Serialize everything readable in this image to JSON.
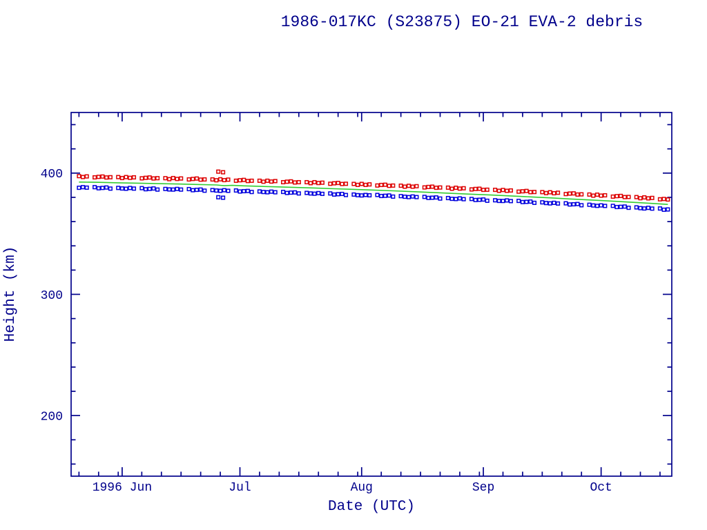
{
  "page": {
    "title": "1986-017KC (S23875) EO-21 EVA-2 debris"
  },
  "chart_data": {
    "type": "scatter",
    "title": "1986-017KC (S23875) EO-21 EVA-2 debris",
    "xlabel": "Date (UTC)",
    "ylabel": "Height (km)",
    "background": "#FFFFFF",
    "axis_color": "#00008B",
    "grid": false,
    "legend": "none",
    "x_axis": {
      "unit": "days, 0 = 1996 May 19",
      "range": [
        0,
        153
      ],
      "major_ticks": [
        {
          "day": 13,
          "label": "1996 Jun"
        },
        {
          "day": 43,
          "label": "Jul"
        },
        {
          "day": 74,
          "label": "Aug"
        },
        {
          "day": 105,
          "label": "Sep"
        },
        {
          "day": 135,
          "label": "Oct"
        }
      ],
      "minor_tick_days": [
        2,
        7,
        12,
        18,
        23,
        28,
        33,
        38,
        48,
        53,
        58,
        63,
        68,
        73,
        79,
        84,
        89,
        94,
        99,
        104,
        110,
        115,
        120,
        125,
        130,
        140,
        145,
        150
      ]
    },
    "y_axis": {
      "range": [
        150,
        450
      ],
      "major_ticks": [
        200,
        300,
        400
      ],
      "minor_ticks": [
        160,
        180,
        220,
        240,
        260,
        280,
        320,
        340,
        360,
        380,
        420,
        440
      ]
    },
    "series": [
      {
        "name": "upper-red-squares",
        "marker": "open-square",
        "color": "#DD0000",
        "points": [
          [
            2,
            397.5
          ],
          [
            3,
            396.8
          ],
          [
            4,
            397.3
          ],
          [
            6,
            396.5
          ],
          [
            7,
            396.9
          ],
          [
            8,
            397.2
          ],
          [
            9,
            396.4
          ],
          [
            10,
            396.6
          ],
          [
            12,
            396.7
          ],
          [
            13,
            395.9
          ],
          [
            14,
            396.7
          ],
          [
            15,
            396.1
          ],
          [
            16,
            396.5
          ],
          [
            18,
            395.7
          ],
          [
            19,
            396.1
          ],
          [
            20,
            396.4
          ],
          [
            21,
            395.6
          ],
          [
            22,
            395.8
          ],
          [
            24,
            395.8
          ],
          [
            25,
            395.0
          ],
          [
            26,
            395.9
          ],
          [
            27,
            395.2
          ],
          [
            28,
            395.6
          ],
          [
            30,
            394.8
          ],
          [
            31,
            395.2
          ],
          [
            32,
            395.5
          ],
          [
            33,
            394.6
          ],
          [
            34,
            394.8
          ],
          [
            36,
            394.8
          ],
          [
            37,
            394.1
          ],
          [
            37.5,
            401.2
          ],
          [
            38,
            394.9
          ],
          [
            38.7,
            400.7
          ],
          [
            39,
            394.2
          ],
          [
            40,
            394.6
          ],
          [
            42,
            393.7
          ],
          [
            43,
            394.1
          ],
          [
            44,
            394.4
          ],
          [
            45,
            393.5
          ],
          [
            46,
            393.7
          ],
          [
            48,
            393.7
          ],
          [
            49,
            392.9
          ],
          [
            50,
            393.7
          ],
          [
            51,
            393.0
          ],
          [
            52,
            393.4
          ],
          [
            54,
            392.5
          ],
          [
            55,
            392.9
          ],
          [
            56,
            393.2
          ],
          [
            57,
            392.3
          ],
          [
            58,
            392.5
          ],
          [
            60,
            392.5
          ],
          [
            61,
            391.7
          ],
          [
            62,
            392.5
          ],
          [
            63,
            391.8
          ],
          [
            64,
            392.1
          ],
          [
            66,
            391.2
          ],
          [
            67,
            391.6
          ],
          [
            68,
            391.9
          ],
          [
            69,
            391.0
          ],
          [
            70,
            391.2
          ],
          [
            72,
            391.1
          ],
          [
            73,
            390.3
          ],
          [
            74,
            391.1
          ],
          [
            75,
            390.3
          ],
          [
            76,
            390.7
          ],
          [
            78,
            389.8
          ],
          [
            79,
            390.2
          ],
          [
            80,
            390.4
          ],
          [
            81,
            389.5
          ],
          [
            82,
            389.7
          ],
          [
            84,
            389.6
          ],
          [
            85,
            388.8
          ],
          [
            86,
            389.5
          ],
          [
            87,
            388.8
          ],
          [
            88,
            389.2
          ],
          [
            90,
            388.2
          ],
          [
            91,
            388.6
          ],
          [
            92,
            388.8
          ],
          [
            93,
            387.9
          ],
          [
            94,
            388.1
          ],
          [
            96,
            388.0
          ],
          [
            97,
            387.1
          ],
          [
            98,
            387.9
          ],
          [
            99,
            387.2
          ],
          [
            100,
            387.5
          ],
          [
            102,
            386.5
          ],
          [
            103,
            386.9
          ],
          [
            104,
            387.1
          ],
          [
            105,
            386.2
          ],
          [
            106,
            386.3
          ],
          [
            108,
            386.2
          ],
          [
            109,
            385.4
          ],
          [
            110,
            386.1
          ],
          [
            111,
            385.4
          ],
          [
            112,
            385.7
          ],
          [
            114,
            384.7
          ],
          [
            115,
            385.0
          ],
          [
            116,
            385.3
          ],
          [
            117,
            384.3
          ],
          [
            118,
            384.4
          ],
          [
            120,
            384.3
          ],
          [
            121,
            383.5
          ],
          [
            122,
            384.2
          ],
          [
            123,
            383.4
          ],
          [
            124,
            383.8
          ],
          [
            126,
            382.7
          ],
          [
            127,
            383.1
          ],
          [
            128,
            383.3
          ],
          [
            129,
            382.3
          ],
          [
            130,
            382.5
          ],
          [
            132,
            382.3
          ],
          [
            133,
            381.4
          ],
          [
            134,
            382.2
          ],
          [
            135,
            381.4
          ],
          [
            136,
            381.7
          ],
          [
            138,
            380.6
          ],
          [
            139,
            381.0
          ],
          [
            140,
            381.2
          ],
          [
            141,
            380.2
          ],
          [
            142,
            380.3
          ],
          [
            144,
            380.2
          ],
          [
            145,
            379.3
          ],
          [
            146,
            380.0
          ],
          [
            147,
            379.2
          ],
          [
            148,
            379.5
          ],
          [
            150,
            378.4
          ],
          [
            151,
            378.7
          ],
          [
            152,
            378.2
          ]
        ]
      },
      {
        "name": "lower-blue-squares",
        "marker": "open-square",
        "color": "#0000DD",
        "points": [
          [
            2,
            387.9
          ],
          [
            3,
            388.4
          ],
          [
            4,
            388.0
          ],
          [
            6,
            388.4
          ],
          [
            7,
            387.5
          ],
          [
            8,
            387.8
          ],
          [
            9,
            388.1
          ],
          [
            10,
            387.2
          ],
          [
            12,
            387.8
          ],
          [
            13,
            387.3
          ],
          [
            14,
            387.1
          ],
          [
            15,
            387.7
          ],
          [
            16,
            387.2
          ],
          [
            18,
            387.6
          ],
          [
            19,
            386.7
          ],
          [
            20,
            387.0
          ],
          [
            21,
            387.3
          ],
          [
            22,
            386.4
          ],
          [
            24,
            386.9
          ],
          [
            25,
            386.5
          ],
          [
            26,
            386.4
          ],
          [
            27,
            386.9
          ],
          [
            28,
            386.4
          ],
          [
            30,
            386.8
          ],
          [
            31,
            385.9
          ],
          [
            32,
            386.2
          ],
          [
            33,
            386.4
          ],
          [
            34,
            385.5
          ],
          [
            36,
            386.0
          ],
          [
            37,
            385.6
          ],
          [
            37.5,
            380.1
          ],
          [
            38,
            385.4
          ],
          [
            38.7,
            379.7
          ],
          [
            39,
            385.9
          ],
          [
            40,
            385.4
          ],
          [
            42,
            385.7
          ],
          [
            43,
            384.8
          ],
          [
            44,
            385.1
          ],
          [
            45,
            385.3
          ],
          [
            46,
            384.4
          ],
          [
            48,
            384.9
          ],
          [
            49,
            384.4
          ],
          [
            50,
            384.2
          ],
          [
            51,
            384.7
          ],
          [
            52,
            384.2
          ],
          [
            54,
            384.5
          ],
          [
            55,
            383.6
          ],
          [
            56,
            383.9
          ],
          [
            57,
            384.1
          ],
          [
            58,
            383.2
          ],
          [
            60,
            383.7
          ],
          [
            61,
            383.2
          ],
          [
            62,
            383.0
          ],
          [
            63,
            383.5
          ],
          [
            64,
            382.9
          ],
          [
            66,
            383.2
          ],
          [
            67,
            382.3
          ],
          [
            68,
            382.6
          ],
          [
            69,
            382.8
          ],
          [
            70,
            381.9
          ],
          [
            72,
            382.3
          ],
          [
            73,
            381.8
          ],
          [
            74,
            381.6
          ],
          [
            75,
            382.0
          ],
          [
            76,
            381.7
          ],
          [
            78,
            382.0
          ],
          [
            79,
            381.1
          ],
          [
            80,
            381.3
          ],
          [
            81,
            381.5
          ],
          [
            82,
            380.6
          ],
          [
            84,
            381.0
          ],
          [
            85,
            380.5
          ],
          [
            86,
            380.2
          ],
          [
            87,
            380.7
          ],
          [
            88,
            380.2
          ],
          [
            90,
            380.4
          ],
          [
            91,
            379.5
          ],
          [
            92,
            379.7
          ],
          [
            93,
            379.9
          ],
          [
            94,
            379.0
          ],
          [
            96,
            379.4
          ],
          [
            97,
            378.8
          ],
          [
            98,
            378.6
          ],
          [
            99,
            379.1
          ],
          [
            100,
            378.5
          ],
          [
            102,
            378.7
          ],
          [
            103,
            377.8
          ],
          [
            104,
            378.0
          ],
          [
            105,
            378.2
          ],
          [
            106,
            377.2
          ],
          [
            108,
            377.6
          ],
          [
            109,
            377.1
          ],
          [
            110,
            377.0
          ],
          [
            111,
            377.5
          ],
          [
            112,
            376.9
          ],
          [
            114,
            377.1
          ],
          [
            115,
            376.1
          ],
          [
            116,
            376.3
          ],
          [
            117,
            376.5
          ],
          [
            118,
            375.5
          ],
          [
            120,
            375.9
          ],
          [
            121,
            375.3
          ],
          [
            122,
            375.0
          ],
          [
            123,
            375.5
          ],
          [
            124,
            374.9
          ],
          [
            126,
            375.1
          ],
          [
            127,
            374.1
          ],
          [
            128,
            374.3
          ],
          [
            129,
            374.5
          ],
          [
            130,
            373.5
          ],
          [
            132,
            373.9
          ],
          [
            133,
            373.3
          ],
          [
            134,
            373.0
          ],
          [
            135,
            373.4
          ],
          [
            136,
            372.9
          ],
          [
            138,
            373.0
          ],
          [
            139,
            372.0
          ],
          [
            140,
            372.2
          ],
          [
            141,
            372.4
          ],
          [
            142,
            371.4
          ],
          [
            144,
            371.7
          ],
          [
            145,
            371.1
          ],
          [
            146,
            370.8
          ],
          [
            147,
            371.3
          ],
          [
            148,
            370.7
          ],
          [
            150,
            370.8
          ],
          [
            151,
            369.8
          ],
          [
            152,
            370.0
          ]
        ]
      },
      {
        "name": "green-trend-line",
        "marker": "line",
        "color": "#33CC33",
        "points": [
          [
            2,
            392.6
          ],
          [
            7,
            392.4
          ],
          [
            12,
            392.0
          ],
          [
            17,
            391.7
          ],
          [
            22,
            391.3
          ],
          [
            27,
            391.0
          ],
          [
            32,
            390.6
          ],
          [
            37,
            390.2
          ],
          [
            39,
            389.6
          ],
          [
            41,
            389.9
          ],
          [
            44,
            389.5
          ],
          [
            47,
            389.2
          ],
          [
            52,
            388.7
          ],
          [
            57,
            388.2
          ],
          [
            62,
            387.7
          ],
          [
            67,
            387.1
          ],
          [
            72,
            386.6
          ],
          [
            77,
            386.0
          ],
          [
            82,
            385.4
          ],
          [
            87,
            384.7
          ],
          [
            92,
            384.0
          ],
          [
            97,
            383.3
          ],
          [
            102,
            382.6
          ],
          [
            107,
            381.9
          ],
          [
            112,
            381.2
          ],
          [
            117,
            380.4
          ],
          [
            122,
            379.6
          ],
          [
            127,
            378.7
          ],
          [
            132,
            377.9
          ],
          [
            137,
            377.0
          ],
          [
            142,
            376.1
          ],
          [
            147,
            375.2
          ],
          [
            152,
            374.2
          ]
        ]
      }
    ]
  }
}
